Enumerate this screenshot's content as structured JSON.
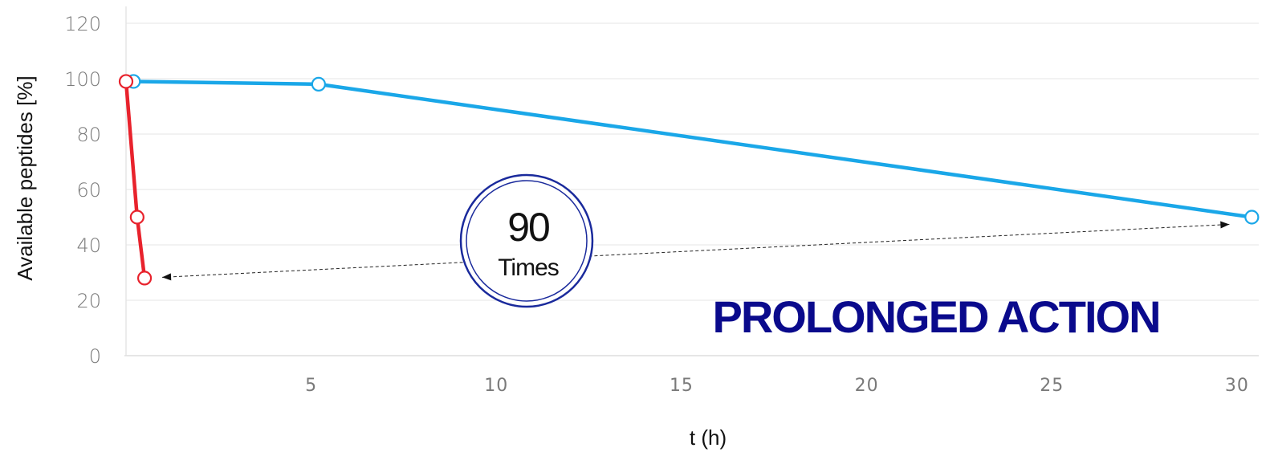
{
  "chart_data": {
    "type": "line",
    "xlabel": "t (h)",
    "ylabel": "Available peptides [%]",
    "xlim": [
      0,
      30.5
    ],
    "ylim": [
      0,
      120
    ],
    "x_ticks": [
      5,
      10,
      15,
      20,
      25,
      30
    ],
    "y_ticks": [
      0,
      20,
      40,
      60,
      80,
      100,
      120
    ],
    "grid": true,
    "series": [
      {
        "color": "#e8222c",
        "points": [
          {
            "x": 0.0,
            "y": 99
          },
          {
            "x": 0.3,
            "y": 50
          },
          {
            "x": 0.5,
            "y": 28
          }
        ]
      },
      {
        "color": "#1aa7e8",
        "points": [
          {
            "x": 0.2,
            "y": 99
          },
          {
            "x": 5.2,
            "y": 98
          },
          {
            "x": 30.4,
            "y": 50
          }
        ]
      }
    ],
    "annotations": {
      "ratio_number": "90",
      "ratio_word": "Times",
      "headline": "PROLONGED ACTION"
    },
    "colors": {
      "badge_ring": "#1a2a9c",
      "headline": "#0a0a8c",
      "grid": "#e6e6e6"
    }
  }
}
